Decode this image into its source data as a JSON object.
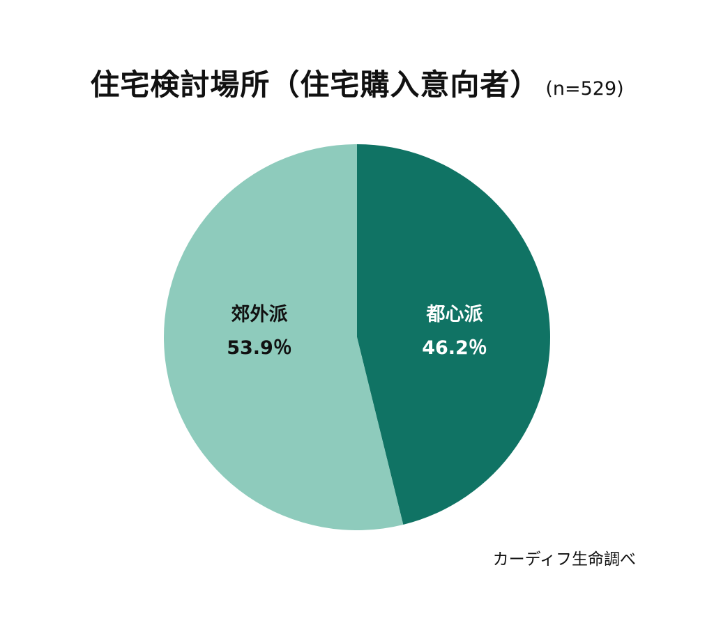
{
  "chart_data": {
    "type": "pie",
    "title": "住宅検討場所（住宅購入意向者）",
    "subtitle": "(n=529)",
    "source": "カーディフ生命調べ",
    "start_angle": "top, clockwise",
    "slices": [
      {
        "name": "都心派",
        "value": 46.2,
        "value_label": "46.2％",
        "color": "#107364",
        "label_color": "#ffffff"
      },
      {
        "name": "郊外派",
        "value": 53.9,
        "value_label": "53.9％",
        "color": "#8ecbbc",
        "label_color": "#111111"
      }
    ]
  }
}
